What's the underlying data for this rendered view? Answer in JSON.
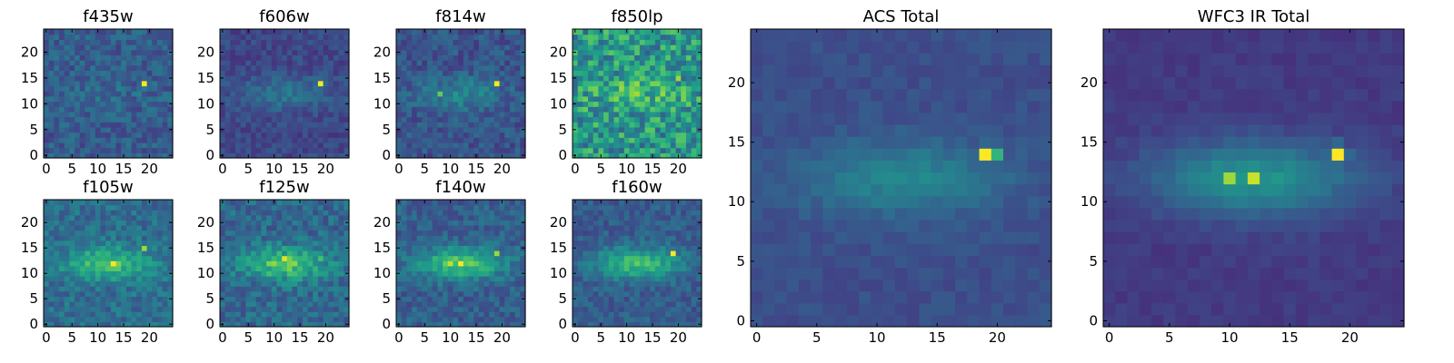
{
  "chart_data": [
    {
      "type": "heatmap",
      "title": "f435w",
      "xticks": [
        0,
        5,
        10,
        15,
        20
      ],
      "yticks": [
        0,
        5,
        10,
        15,
        20
      ],
      "xlim": [
        -0.5,
        24.5
      ],
      "ylim": [
        -0.5,
        24.5
      ],
      "shape": [
        25,
        25
      ],
      "colormap": "viridis",
      "peaks": [
        {
          "x": 19,
          "y": 14,
          "value": 1.0
        }
      ]
    },
    {
      "type": "heatmap",
      "title": "f606w",
      "xticks": [
        0,
        5,
        10,
        15,
        20
      ],
      "yticks": [
        0,
        5,
        10,
        15,
        20
      ],
      "xlim": [
        -0.5,
        24.5
      ],
      "ylim": [
        -0.5,
        24.5
      ],
      "shape": [
        25,
        25
      ],
      "colormap": "viridis",
      "peaks": [
        {
          "x": 19,
          "y": 14,
          "value": 1.0
        },
        {
          "x": 13,
          "y": 12,
          "value": 0.35
        }
      ]
    },
    {
      "type": "heatmap",
      "title": "f814w",
      "xticks": [
        0,
        5,
        10,
        15,
        20
      ],
      "yticks": [
        0,
        5,
        10,
        15,
        20
      ],
      "xlim": [
        -0.5,
        24.5
      ],
      "ylim": [
        -0.5,
        24.5
      ],
      "shape": [
        25,
        25
      ],
      "colormap": "viridis",
      "peaks": [
        {
          "x": 19,
          "y": 14,
          "value": 1.0
        },
        {
          "x": 8,
          "y": 12,
          "value": 0.75
        },
        {
          "x": 12,
          "y": 12,
          "value": 0.4
        }
      ]
    },
    {
      "type": "heatmap",
      "title": "f850lp",
      "xticks": [
        0,
        5,
        10,
        15,
        20
      ],
      "yticks": [
        0,
        5,
        10,
        15,
        20
      ],
      "xlim": [
        -0.5,
        24.5
      ],
      "ylim": [
        -0.5,
        24.5
      ],
      "shape": [
        25,
        25
      ],
      "colormap": "viridis",
      "peaks": [
        {
          "x": 20,
          "y": 15,
          "value": 0.85
        },
        {
          "x": 14,
          "y": 11,
          "value": 0.8
        },
        {
          "x": 11,
          "y": 13,
          "value": 0.65
        },
        {
          "x": 21,
          "y": 11,
          "value": 0.8
        }
      ]
    },
    {
      "type": "heatmap",
      "title": "ACS Total",
      "xticks": [
        0,
        5,
        10,
        15,
        20
      ],
      "yticks": [
        0,
        5,
        10,
        15,
        20
      ],
      "xlim": [
        -0.5,
        24.5
      ],
      "ylim": [
        -0.5,
        24.5
      ],
      "shape": [
        25,
        25
      ],
      "colormap": "viridis",
      "peaks": [
        {
          "x": 19,
          "y": 14,
          "value": 1.0
        },
        {
          "x": 20,
          "y": 14,
          "value": 0.65
        },
        {
          "x": 12,
          "y": 12,
          "value": 0.45
        }
      ]
    },
    {
      "type": "heatmap",
      "title": "WFC3 IR Total",
      "xticks": [
        0,
        5,
        10,
        15,
        20
      ],
      "yticks": [
        0,
        5,
        10,
        15,
        20
      ],
      "xlim": [
        -0.5,
        24.5
      ],
      "ylim": [
        -0.5,
        24.5
      ],
      "shape": [
        25,
        25
      ],
      "colormap": "viridis",
      "peaks": [
        {
          "x": 19,
          "y": 14,
          "value": 1.0
        },
        {
          "x": 12,
          "y": 12,
          "value": 0.92
        },
        {
          "x": 10,
          "y": 12,
          "value": 0.85
        }
      ]
    },
    {
      "type": "heatmap",
      "title": "f105w",
      "xticks": [
        0,
        5,
        10,
        15,
        20
      ],
      "yticks": [
        0,
        5,
        10,
        15,
        20
      ],
      "xlim": [
        -0.5,
        24.5
      ],
      "ylim": [
        -0.5,
        24.5
      ],
      "shape": [
        25,
        25
      ],
      "colormap": "viridis",
      "peaks": [
        {
          "x": 13,
          "y": 12,
          "value": 1.0
        },
        {
          "x": 19,
          "y": 15,
          "value": 0.85
        }
      ]
    },
    {
      "type": "heatmap",
      "title": "f125w",
      "xticks": [
        0,
        5,
        10,
        15,
        20
      ],
      "yticks": [
        0,
        5,
        10,
        15,
        20
      ],
      "xlim": [
        -0.5,
        24.5
      ],
      "ylim": [
        -0.5,
        24.5
      ],
      "shape": [
        25,
        25
      ],
      "colormap": "viridis",
      "peaks": [
        {
          "x": 12,
          "y": 13,
          "value": 0.95
        },
        {
          "x": 9,
          "y": 12,
          "value": 0.8
        },
        {
          "x": 19,
          "y": 13,
          "value": 0.7
        }
      ]
    },
    {
      "type": "heatmap",
      "title": "f140w",
      "xticks": [
        0,
        5,
        10,
        15,
        20
      ],
      "yticks": [
        0,
        5,
        10,
        15,
        20
      ],
      "xlim": [
        -0.5,
        24.5
      ],
      "ylim": [
        -0.5,
        24.5
      ],
      "shape": [
        25,
        25
      ],
      "colormap": "viridis",
      "peaks": [
        {
          "x": 12,
          "y": 12,
          "value": 1.0
        },
        {
          "x": 10,
          "y": 12,
          "value": 0.9
        },
        {
          "x": 19,
          "y": 14,
          "value": 0.85
        }
      ]
    },
    {
      "type": "heatmap",
      "title": "f160w",
      "xticks": [
        0,
        5,
        10,
        15,
        20
      ],
      "yticks": [
        0,
        5,
        10,
        15,
        20
      ],
      "xlim": [
        -0.5,
        24.5
      ],
      "ylim": [
        -0.5,
        24.5
      ],
      "shape": [
        25,
        25
      ],
      "colormap": "viridis",
      "peaks": [
        {
          "x": 19,
          "y": 14,
          "value": 1.0
        },
        {
          "x": 12,
          "y": 12,
          "value": 0.7
        }
      ]
    }
  ]
}
